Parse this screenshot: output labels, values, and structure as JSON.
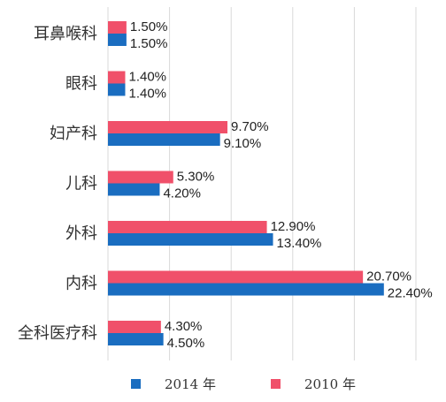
{
  "chart_data": {
    "type": "bar",
    "orientation": "horizontal",
    "categories": [
      "耳鼻喉科",
      "眼科",
      "妇产科",
      "儿科",
      "外科",
      "内科",
      "全科医疗科"
    ],
    "series": [
      {
        "name": "2010 年",
        "color": "#f0506a",
        "values": [
          1.5,
          1.4,
          9.7,
          5.3,
          12.9,
          20.7,
          4.3
        ],
        "labels": [
          "1.50%",
          "1.40%",
          "9.70%",
          "5.30%",
          "12.90%",
          "20.70%",
          "4.30%"
        ]
      },
      {
        "name": "2014 年",
        "color": "#1a6dc0",
        "values": [
          1.5,
          1.4,
          9.1,
          4.2,
          13.4,
          22.4,
          4.5
        ],
        "labels": [
          "1.50%",
          "1.40%",
          "9.10%",
          "4.20%",
          "13.40%",
          "22.40%",
          "4.50%"
        ]
      }
    ],
    "xlim": [
      0,
      25
    ],
    "gridlines": [
      0,
      5,
      10,
      15,
      20,
      25
    ],
    "grid": true,
    "legend": {
      "position": "bottom",
      "items": [
        {
          "label": "2014 年",
          "color": "#1a6dc0"
        },
        {
          "label": "2010 年",
          "color": "#f0506a"
        }
      ]
    },
    "title": "",
    "xlabel": "",
    "ylabel": ""
  }
}
